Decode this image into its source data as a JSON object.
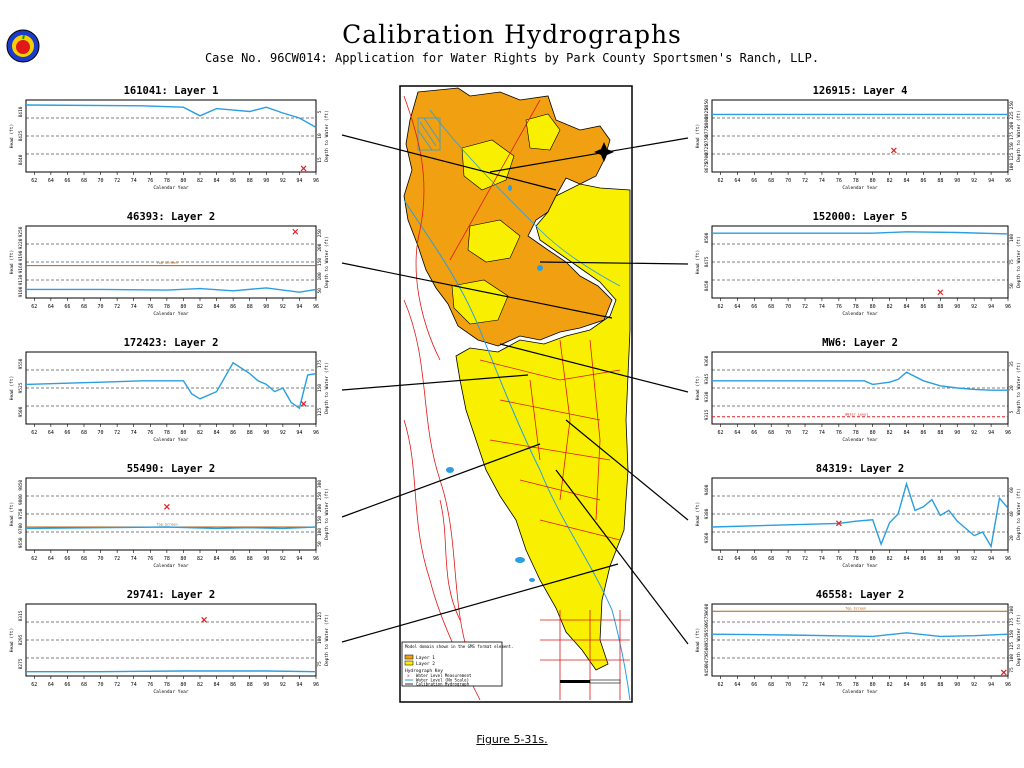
{
  "title": "Calibration Hydrographs",
  "subtitle": "Case No. 96CW014: Application for Water Rights by Park County Sportsmen's Ranch, LLP.",
  "caption": "Figure 5-31s.",
  "colors": {
    "water_level": "#2a9ee0",
    "measurement": "#e02020",
    "layer1": "#f0a010",
    "layer2": "#f8f000",
    "roads": "#e01818"
  },
  "map": {
    "legend": {
      "title": "Model domain shown in the GMS format element.",
      "layer1": "Layer 1",
      "layer2": "Layer 2",
      "hydrograph_key": "Hydrograph Key",
      "measurement": "Water Level Measurement",
      "water_level": "Water Level (No Scale)",
      "calibration": "Calibration Hydrograph"
    },
    "north_label": "N"
  },
  "chart_data": [
    {
      "id": "161041",
      "type": "line",
      "title": "161041: Layer 1",
      "xlabel": "Calendar Year",
      "ylabel": "Head (ft)",
      "y2label": "Depth to Water (ft)",
      "xlim": [
        61,
        96
      ],
      "x_ticks": [
        "62",
        "64",
        "66",
        "68",
        "70",
        "72",
        "74",
        "76",
        "78",
        "80",
        "82",
        "84",
        "86",
        "88",
        "90",
        "92",
        "94",
        "96"
      ],
      "y_ticks": [
        "8440",
        "8425",
        "8410"
      ],
      "y2_ticks": [
        "5",
        "10",
        "15"
      ],
      "series": [
        {
          "x": [
            61,
            75,
            80,
            82,
            84,
            86,
            88,
            90,
            92,
            94,
            96
          ],
          "y": [
            0.93,
            0.92,
            0.9,
            0.78,
            0.88,
            0.86,
            0.84,
            0.9,
            0.82,
            0.75,
            0.62
          ]
        }
      ],
      "measurements": [
        [
          94.5,
          0.05
        ]
      ]
    },
    {
      "id": "46393",
      "type": "line",
      "title": "46393: Layer 2",
      "xlabel": "Calendar Year",
      "ylabel": "Head (ft)",
      "y2label": "Depth to Water (ft)",
      "xlim": [
        61,
        96
      ],
      "x_ticks": [
        "62",
        "64",
        "66",
        "68",
        "70",
        "72",
        "74",
        "76",
        "78",
        "80",
        "82",
        "84",
        "86",
        "88",
        "90",
        "92",
        "94",
        "96"
      ],
      "y_ticks": [
        "9100",
        "9130",
        "9160",
        "9190",
        "9220",
        "9250"
      ],
      "y2_ticks": [
        "250",
        "200",
        "150",
        "100",
        "50"
      ],
      "series": [
        {
          "x": [
            61,
            70,
            78,
            82,
            86,
            90,
            94,
            96
          ],
          "y": [
            0.12,
            0.12,
            0.11,
            0.13,
            0.1,
            0.14,
            0.08,
            0.12
          ]
        }
      ],
      "measurements": [
        [
          93.5,
          0.92
        ]
      ],
      "screen_label": "Top Screen",
      "screen_level": 0.45
    },
    {
      "id": "172423",
      "type": "line",
      "title": "172423: Layer 2",
      "xlabel": "Calendar Year",
      "ylabel": "Head (ft)",
      "y2label": "Depth to Water (ft)",
      "xlim": [
        61,
        96
      ],
      "x_ticks": [
        "62",
        "64",
        "66",
        "68",
        "70",
        "72",
        "74",
        "76",
        "78",
        "80",
        "82",
        "84",
        "86",
        "88",
        "90",
        "92",
        "94",
        "96"
      ],
      "y_ticks": [
        "9500",
        "9525",
        "9550"
      ],
      "y2_ticks": [
        "175",
        "150",
        "125"
      ],
      "series": [
        {
          "x": [
            61,
            70,
            75,
            80,
            81,
            82,
            84,
            86,
            88,
            89,
            90,
            91,
            92,
            93,
            94,
            95,
            96
          ],
          "y": [
            0.55,
            0.58,
            0.6,
            0.6,
            0.42,
            0.35,
            0.45,
            0.85,
            0.7,
            0.6,
            0.55,
            0.45,
            0.5,
            0.3,
            0.22,
            0.68,
            0.7
          ]
        }
      ],
      "measurements": [
        [
          94.5,
          0.28
        ]
      ]
    },
    {
      "id": "55490",
      "type": "line",
      "title": "55490: Layer 2",
      "xlabel": "Calendar Year",
      "ylabel": "Head (ft)",
      "y2label": "Depth to Water (ft)",
      "xlim": [
        61,
        96
      ],
      "x_ticks": [
        "62",
        "64",
        "66",
        "68",
        "70",
        "72",
        "74",
        "76",
        "78",
        "80",
        "82",
        "84",
        "86",
        "88",
        "90",
        "92",
        "94",
        "96"
      ],
      "y_ticks": [
        "9650",
        "9700",
        "9750",
        "9800",
        "9850"
      ],
      "y2_ticks": [
        "300",
        "250",
        "200",
        "150",
        "100",
        "50"
      ],
      "series": [
        {
          "x": [
            61,
            70,
            78,
            84,
            88,
            92,
            96
          ],
          "y": [
            0.3,
            0.31,
            0.32,
            0.3,
            0.31,
            0.3,
            0.32
          ]
        }
      ],
      "measurements": [
        [
          78,
          0.6
        ]
      ],
      "screen_label": "Top Screen",
      "screen_level": 0.32
    },
    {
      "id": "29741",
      "type": "line",
      "title": "29741: Layer 2",
      "xlabel": "Calendar Year",
      "ylabel": "Head (ft)",
      "y2label": "Depth to Water (ft)",
      "xlim": [
        61,
        96
      ],
      "x_ticks": [
        "62",
        "64",
        "66",
        "68",
        "70",
        "72",
        "74",
        "76",
        "78",
        "80",
        "82",
        "84",
        "86",
        "88",
        "90",
        "92",
        "94",
        "96"
      ],
      "y_ticks": [
        "8275",
        "8295",
        "8315"
      ],
      "y2_ticks": [
        "125",
        "100",
        "75"
      ],
      "series": [
        {
          "x": [
            61,
            70,
            80,
            90,
            96
          ],
          "y": [
            0.06,
            0.06,
            0.07,
            0.07,
            0.06
          ]
        }
      ],
      "measurements": [
        [
          82.5,
          0.78
        ]
      ]
    },
    {
      "id": "126915",
      "type": "line",
      "title": "126915: Layer 4",
      "xlabel": "Calendar Year",
      "ylabel": "Head (ft)",
      "y2label": "Depth to Water (ft)",
      "xlim": [
        61,
        96
      ],
      "x_ticks": [
        "62",
        "64",
        "66",
        "68",
        "70",
        "72",
        "74",
        "76",
        "78",
        "80",
        "82",
        "84",
        "86",
        "88",
        "90",
        "92",
        "94",
        "96"
      ],
      "y_ticks": [
        "8675",
        "8700",
        "8725",
        "8750",
        "8775",
        "8800",
        "8825",
        "8850"
      ],
      "y2_ticks": [
        "250",
        "225",
        "200",
        "175",
        "150",
        "125",
        "100"
      ],
      "series": [
        {
          "x": [
            61,
            96
          ],
          "y": [
            0.8,
            0.8
          ]
        }
      ],
      "measurements": [
        [
          82.5,
          0.3
        ]
      ]
    },
    {
      "id": "152000",
      "type": "line",
      "title": "152000: Layer 5",
      "xlabel": "Calendar Year",
      "ylabel": "Head (ft)",
      "y2label": "Depth to Water (ft)",
      "xlim": [
        61,
        96
      ],
      "x_ticks": [
        "62",
        "64",
        "66",
        "68",
        "70",
        "72",
        "74",
        "76",
        "78",
        "80",
        "82",
        "84",
        "86",
        "88",
        "90",
        "92",
        "94",
        "96"
      ],
      "y_ticks": [
        "8450",
        "8475",
        "8500"
      ],
      "y2_ticks": [
        "100",
        "75",
        "50"
      ],
      "series": [
        {
          "x": [
            61,
            80,
            84,
            90,
            96
          ],
          "y": [
            0.9,
            0.9,
            0.92,
            0.91,
            0.89
          ]
        }
      ],
      "measurements": [
        [
          88,
          0.08
        ]
      ]
    },
    {
      "id": "MW6",
      "type": "line",
      "title": "MW6: Layer 2",
      "xlabel": "Calendar Year",
      "ylabel": "Head (ft)",
      "y2label": "Depth to Water (ft)",
      "xlim": [
        61,
        96
      ],
      "x_ticks": [
        "62",
        "64",
        "66",
        "68",
        "70",
        "72",
        "74",
        "76",
        "78",
        "80",
        "82",
        "84",
        "86",
        "88",
        "90",
        "92",
        "94",
        "96"
      ],
      "y_ticks": [
        "9315",
        "9330",
        "9345",
        "9360"
      ],
      "y2_ticks": [
        "35",
        "20",
        "5"
      ],
      "series": [
        {
          "x": [
            61,
            79,
            80,
            82,
            83,
            84,
            86,
            88,
            90,
            92,
            94,
            96
          ],
          "y": [
            0.6,
            0.6,
            0.55,
            0.58,
            0.62,
            0.72,
            0.6,
            0.53,
            0.5,
            0.48,
            0.47,
            0.47
          ]
        }
      ],
      "measurements": [],
      "screen_label": "Water Level",
      "screen_level": 0.1,
      "screen_color": "#e02020"
    },
    {
      "id": "84319",
      "type": "line",
      "title": "84319: Layer 2",
      "xlabel": "Calendar Year",
      "ylabel": "Head (ft)",
      "y2label": "Depth to Water (ft)",
      "xlim": [
        61,
        96
      ],
      "x_ticks": [
        "62",
        "64",
        "66",
        "68",
        "70",
        "72",
        "74",
        "76",
        "78",
        "80",
        "82",
        "84",
        "86",
        "88",
        "90",
        "92",
        "94",
        "96"
      ],
      "y_ticks": [
        "9360",
        "9380",
        "9400"
      ],
      "y2_ticks": [
        "60",
        "40",
        "20"
      ],
      "series": [
        {
          "x": [
            61,
            70,
            76,
            78,
            80,
            81,
            82,
            83,
            84,
            85,
            86,
            87,
            88,
            89,
            90,
            91,
            92,
            93,
            94,
            95,
            96
          ],
          "y": [
            0.32,
            0.35,
            0.37,
            0.4,
            0.42,
            0.08,
            0.38,
            0.5,
            0.92,
            0.55,
            0.6,
            0.7,
            0.48,
            0.55,
            0.4,
            0.3,
            0.2,
            0.25,
            0.05,
            0.72,
            0.58
          ]
        }
      ],
      "measurements": [
        [
          76,
          0.37
        ]
      ]
    },
    {
      "id": "46558",
      "type": "line",
      "title": "46558: Layer 2",
      "xlabel": "Calendar Year",
      "ylabel": "Head (ft)",
      "y2label": "Depth to Water (ft)",
      "xlim": [
        61,
        96
      ],
      "x_ticks": [
        "62",
        "64",
        "66",
        "68",
        "70",
        "72",
        "74",
        "76",
        "78",
        "80",
        "82",
        "84",
        "86",
        "88",
        "90",
        "92",
        "94",
        "96"
      ],
      "y_ticks": [
        "9450",
        "9475",
        "9500",
        "9525",
        "9550",
        "9575",
        "9600"
      ],
      "y2_ticks": [
        "200",
        "175",
        "150",
        "125",
        "100",
        "75"
      ],
      "series": [
        {
          "x": [
            61,
            70,
            80,
            84,
            88,
            92,
            96
          ],
          "y": [
            0.58,
            0.57,
            0.55,
            0.6,
            0.55,
            0.56,
            0.58
          ]
        }
      ],
      "measurements": [
        [
          95.5,
          0.05
        ]
      ],
      "screen_label": "Top Screen",
      "screen_level": 0.9
    }
  ]
}
